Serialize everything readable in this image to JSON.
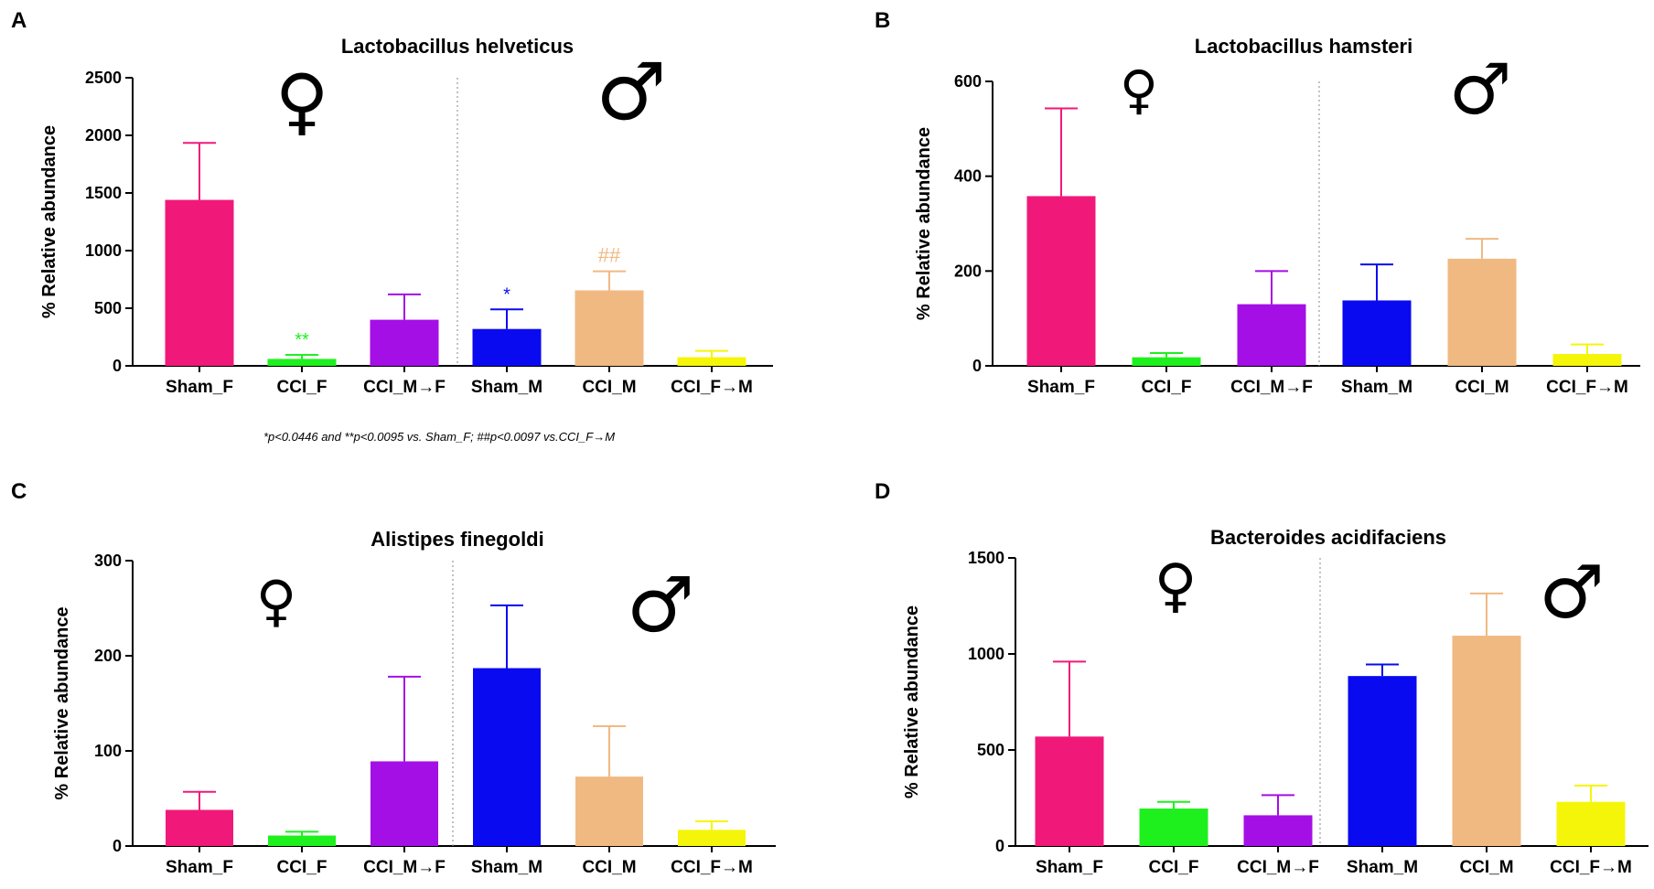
{
  "colors": [
    "#F0197A",
    "#1EF01E",
    "#A40FE6",
    "#0A0AF0",
    "#F0B982",
    "#F5F50A"
  ],
  "symbols": {
    "female": "♀",
    "male": "♂"
  },
  "footnote": "*p<0.0446 and **p<0.0095 vs. Sham_F; ##p<0.0097 vs.CCI_F→M",
  "chart_data": [
    {
      "panel": "A",
      "type": "bar",
      "title": "Lactobacillus helveticus",
      "ylabel": "% Relative abundance",
      "xlabel": "",
      "categories": [
        "Sham_F",
        "CCI_F",
        "CCI_M→F",
        "Sham_M",
        "CCI_M",
        "CCI_F→M"
      ],
      "values": [
        1440,
        60,
        400,
        320,
        655,
        75
      ],
      "errors": [
        1935,
        95,
        620,
        490,
        820,
        130
      ],
      "ylim": [
        0,
        2500
      ],
      "yticks": [
        "0",
        "500",
        "1000",
        "1500",
        "2000",
        "2500"
      ],
      "annotations": [
        {
          "category": "CCI_F",
          "text": "**",
          "color": "#1EF01E"
        },
        {
          "category": "Sham_M",
          "text": "*",
          "color": "#0A0AF0"
        },
        {
          "category": "CCI_M",
          "text": "##",
          "color": "#F0B982"
        }
      ]
    },
    {
      "panel": "B",
      "type": "bar",
      "title": "Lactobacillus hamsteri",
      "ylabel": "% Relative abundance",
      "xlabel": "",
      "categories": [
        "Sham_F",
        "CCI_F",
        "CCI_M→F",
        "Sham_M",
        "CCI_M",
        "CCI_F→M"
      ],
      "values": [
        358,
        18,
        130,
        138,
        226,
        25
      ],
      "errors": [
        543,
        27,
        200,
        214,
        268,
        45
      ],
      "ylim": [
        0,
        600
      ],
      "yticks": [
        "0",
        "200",
        "400",
        "600"
      ],
      "annotations": []
    },
    {
      "panel": "C",
      "type": "bar",
      "title": "Alistipes finegoldi",
      "ylabel": "% Relative abundance",
      "xlabel": "",
      "categories": [
        "Sham_F",
        "CCI_F",
        "CCI_M→F",
        "Sham_M",
        "CCI_M",
        "CCI_F→M"
      ],
      "values": [
        38,
        11,
        89,
        187,
        73,
        17
      ],
      "errors": [
        57,
        15,
        178,
        253,
        126,
        26
      ],
      "ylim": [
        0,
        300
      ],
      "yticks": [
        "0",
        "100",
        "200",
        "300"
      ],
      "annotations": []
    },
    {
      "panel": "D",
      "type": "bar",
      "title": "Bacteroides acidifaciens",
      "ylabel": "% Relative abundance",
      "xlabel": "",
      "categories": [
        "Sham_F",
        "CCI_F",
        "CCI_M→F",
        "Sham_M",
        "CCI_M",
        "CCI_F→M"
      ],
      "values": [
        570,
        195,
        160,
        885,
        1095,
        230
      ],
      "errors": [
        960,
        230,
        265,
        945,
        1315,
        315
      ],
      "ylim": [
        0,
        1500
      ],
      "yticks": [
        "0",
        "500",
        "1000",
        "1500"
      ],
      "annotations": []
    }
  ]
}
